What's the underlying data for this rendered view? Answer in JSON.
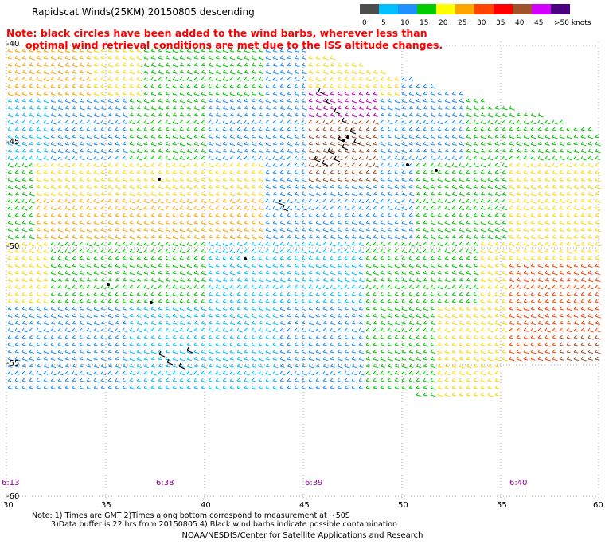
{
  "header": {
    "title": "Rapidscat Winds(25KM) 20150805 descending",
    "note_lines": [
      "Note: black circles have been added to the wind barbs, wherever less than",
      "optimal wind retrieval conditions are met due to the ISS altitude changes."
    ]
  },
  "legend": {
    "unit_label": ">50 knots",
    "ticks": [
      "0",
      "5",
      "10",
      "15",
      "20",
      "25",
      "30",
      "35",
      "40",
      "45"
    ],
    "colors": [
      "#4d4d4d",
      "#00bfff",
      "#1e90ff",
      "#00cc00",
      "#ffff00",
      "#ffa500",
      "#ff4500",
      "#ff0000",
      "#a0522d",
      "#d400ff",
      "#4b0082"
    ]
  },
  "map": {
    "lat_labels": [
      "-40",
      "-45",
      "-50",
      "-55",
      "-60"
    ],
    "lon_labels": [
      "30",
      "35",
      "40",
      "45",
      "50",
      "55",
      "60"
    ],
    "time_labels": [
      "6:13",
      "6:38",
      "6:39",
      "6:40"
    ],
    "grid_color": "#888888",
    "barb_colors": {
      "calm": "#4d4d4d",
      "light": "#00bfff",
      "blue": "#1e90ff",
      "dark_blue": "#0000cd",
      "green": "#00cc00",
      "yellow": "#ffd700",
      "orange": "#ffa500",
      "red": "#ff4500",
      "brown": "#a0522d",
      "magenta": "#cc00cc",
      "contaminated": "#000000"
    }
  },
  "footer": {
    "line1": "Note: 1) Times are GMT 2)Times along bottom correspond to measurement at ~50S",
    "line2": "3)Data buffer is 22 hrs from 20150805 4) Black wind barbs indicate possible contamination",
    "credit": "NOAA/NESDIS/Center for Satellite Applications and Research"
  }
}
